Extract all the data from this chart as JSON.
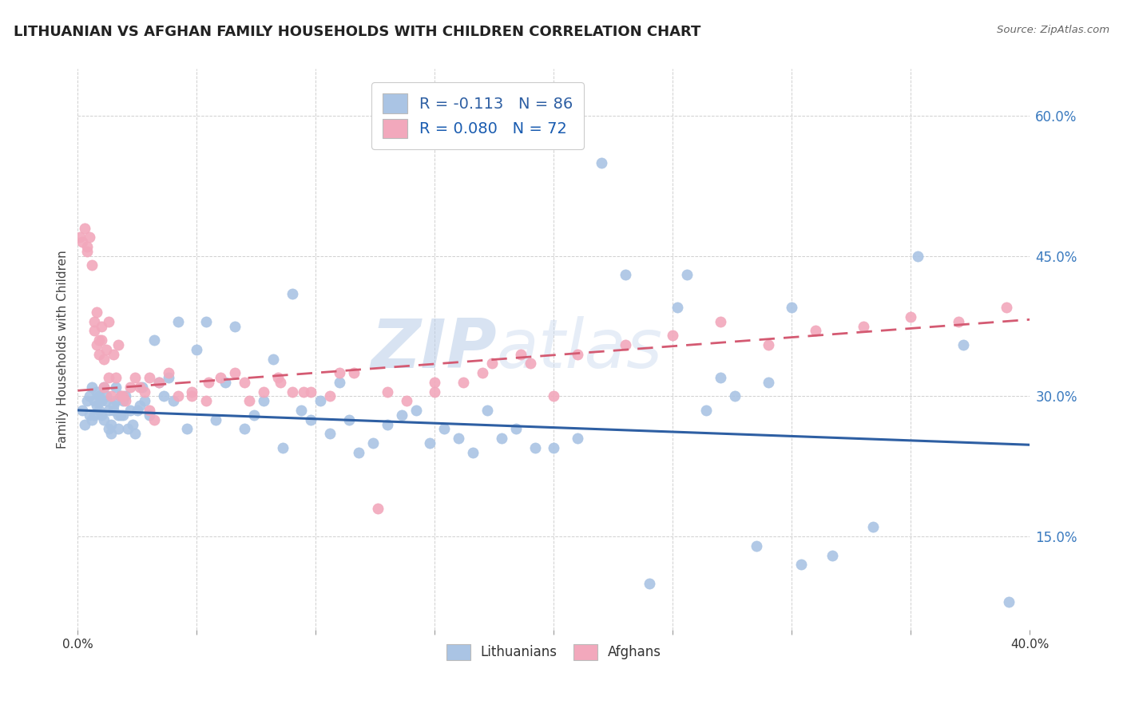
{
  "title": "LITHUANIAN VS AFGHAN FAMILY HOUSEHOLDS WITH CHILDREN CORRELATION CHART",
  "source": "Source: ZipAtlas.com",
  "ylabel": "Family Households with Children",
  "y_ticks": [
    "15.0%",
    "30.0%",
    "45.0%",
    "60.0%"
  ],
  "y_tick_values": [
    0.15,
    0.3,
    0.45,
    0.6
  ],
  "xlim": [
    0.0,
    0.4
  ],
  "ylim": [
    0.05,
    0.65
  ],
  "watermark_zip": "ZIP",
  "watermark_atlas": "atlas",
  "lithuanian_color": "#aac4e4",
  "afghan_color": "#f2a8bc",
  "trendline_lithuanian_color": "#2e5fa3",
  "trendline_afghan_color": "#d45a72",
  "background_color": "#ffffff",
  "grid_color": "#d0d0d0",
  "lithuanian_points": [
    [
      0.002,
      0.285
    ],
    [
      0.003,
      0.27
    ],
    [
      0.004,
      0.295
    ],
    [
      0.005,
      0.3
    ],
    [
      0.005,
      0.28
    ],
    [
      0.006,
      0.275
    ],
    [
      0.006,
      0.31
    ],
    [
      0.007,
      0.295
    ],
    [
      0.007,
      0.28
    ],
    [
      0.008,
      0.305
    ],
    [
      0.008,
      0.29
    ],
    [
      0.009,
      0.3
    ],
    [
      0.009,
      0.285
    ],
    [
      0.01,
      0.295
    ],
    [
      0.01,
      0.28
    ],
    [
      0.011,
      0.31
    ],
    [
      0.011,
      0.275
    ],
    [
      0.012,
      0.295
    ],
    [
      0.012,
      0.3
    ],
    [
      0.013,
      0.265
    ],
    [
      0.013,
      0.285
    ],
    [
      0.014,
      0.27
    ],
    [
      0.014,
      0.26
    ],
    [
      0.015,
      0.285
    ],
    [
      0.015,
      0.29
    ],
    [
      0.016,
      0.31
    ],
    [
      0.016,
      0.295
    ],
    [
      0.017,
      0.28
    ],
    [
      0.017,
      0.265
    ],
    [
      0.018,
      0.28
    ],
    [
      0.018,
      0.3
    ],
    [
      0.019,
      0.28
    ],
    [
      0.019,
      0.295
    ],
    [
      0.02,
      0.3
    ],
    [
      0.021,
      0.265
    ],
    [
      0.022,
      0.285
    ],
    [
      0.023,
      0.27
    ],
    [
      0.024,
      0.26
    ],
    [
      0.025,
      0.285
    ],
    [
      0.026,
      0.29
    ],
    [
      0.027,
      0.31
    ],
    [
      0.028,
      0.295
    ],
    [
      0.03,
      0.28
    ],
    [
      0.032,
      0.36
    ],
    [
      0.034,
      0.315
    ],
    [
      0.036,
      0.3
    ],
    [
      0.038,
      0.32
    ],
    [
      0.04,
      0.295
    ],
    [
      0.042,
      0.38
    ],
    [
      0.046,
      0.265
    ],
    [
      0.05,
      0.35
    ],
    [
      0.054,
      0.38
    ],
    [
      0.058,
      0.275
    ],
    [
      0.062,
      0.315
    ],
    [
      0.066,
      0.375
    ],
    [
      0.07,
      0.265
    ],
    [
      0.074,
      0.28
    ],
    [
      0.078,
      0.295
    ],
    [
      0.082,
      0.34
    ],
    [
      0.086,
      0.245
    ],
    [
      0.09,
      0.41
    ],
    [
      0.094,
      0.285
    ],
    [
      0.098,
      0.275
    ],
    [
      0.102,
      0.295
    ],
    [
      0.106,
      0.26
    ],
    [
      0.11,
      0.315
    ],
    [
      0.114,
      0.275
    ],
    [
      0.118,
      0.24
    ],
    [
      0.124,
      0.25
    ],
    [
      0.13,
      0.27
    ],
    [
      0.136,
      0.28
    ],
    [
      0.142,
      0.285
    ],
    [
      0.148,
      0.25
    ],
    [
      0.154,
      0.265
    ],
    [
      0.16,
      0.255
    ],
    [
      0.166,
      0.24
    ],
    [
      0.172,
      0.285
    ],
    [
      0.178,
      0.255
    ],
    [
      0.184,
      0.265
    ],
    [
      0.192,
      0.245
    ],
    [
      0.2,
      0.245
    ],
    [
      0.21,
      0.255
    ],
    [
      0.22,
      0.55
    ],
    [
      0.23,
      0.43
    ],
    [
      0.24,
      0.1
    ],
    [
      0.252,
      0.395
    ],
    [
      0.264,
      0.285
    ],
    [
      0.276,
      0.3
    ],
    [
      0.29,
      0.315
    ],
    [
      0.304,
      0.12
    ],
    [
      0.256,
      0.43
    ],
    [
      0.27,
      0.32
    ],
    [
      0.285,
      0.14
    ],
    [
      0.3,
      0.395
    ],
    [
      0.317,
      0.13
    ],
    [
      0.334,
      0.16
    ],
    [
      0.353,
      0.45
    ],
    [
      0.372,
      0.355
    ],
    [
      0.391,
      0.08
    ]
  ],
  "afghan_points": [
    [
      0.001,
      0.47
    ],
    [
      0.002,
      0.465
    ],
    [
      0.003,
      0.48
    ],
    [
      0.004,
      0.46
    ],
    [
      0.004,
      0.455
    ],
    [
      0.005,
      0.47
    ],
    [
      0.006,
      0.44
    ],
    [
      0.007,
      0.38
    ],
    [
      0.007,
      0.37
    ],
    [
      0.008,
      0.39
    ],
    [
      0.008,
      0.355
    ],
    [
      0.009,
      0.36
    ],
    [
      0.009,
      0.345
    ],
    [
      0.01,
      0.36
    ],
    [
      0.01,
      0.375
    ],
    [
      0.011,
      0.34
    ],
    [
      0.011,
      0.31
    ],
    [
      0.012,
      0.35
    ],
    [
      0.013,
      0.32
    ],
    [
      0.013,
      0.38
    ],
    [
      0.014,
      0.3
    ],
    [
      0.015,
      0.345
    ],
    [
      0.016,
      0.32
    ],
    [
      0.017,
      0.355
    ],
    [
      0.018,
      0.3
    ],
    [
      0.019,
      0.3
    ],
    [
      0.02,
      0.295
    ],
    [
      0.022,
      0.31
    ],
    [
      0.024,
      0.32
    ],
    [
      0.026,
      0.31
    ],
    [
      0.028,
      0.305
    ],
    [
      0.03,
      0.285
    ],
    [
      0.032,
      0.275
    ],
    [
      0.034,
      0.315
    ],
    [
      0.038,
      0.325
    ],
    [
      0.042,
      0.3
    ],
    [
      0.048,
      0.305
    ],
    [
      0.054,
      0.295
    ],
    [
      0.06,
      0.32
    ],
    [
      0.066,
      0.325
    ],
    [
      0.072,
      0.295
    ],
    [
      0.078,
      0.305
    ],
    [
      0.084,
      0.32
    ],
    [
      0.09,
      0.305
    ],
    [
      0.098,
      0.305
    ],
    [
      0.106,
      0.3
    ],
    [
      0.116,
      0.325
    ],
    [
      0.126,
      0.18
    ],
    [
      0.138,
      0.295
    ],
    [
      0.15,
      0.305
    ],
    [
      0.162,
      0.315
    ],
    [
      0.174,
      0.335
    ],
    [
      0.186,
      0.345
    ],
    [
      0.2,
      0.3
    ],
    [
      0.085,
      0.315
    ],
    [
      0.095,
      0.305
    ],
    [
      0.048,
      0.3
    ],
    [
      0.07,
      0.315
    ],
    [
      0.11,
      0.325
    ],
    [
      0.13,
      0.305
    ],
    [
      0.15,
      0.315
    ],
    [
      0.17,
      0.325
    ],
    [
      0.19,
      0.335
    ],
    [
      0.21,
      0.345
    ],
    [
      0.23,
      0.355
    ],
    [
      0.25,
      0.365
    ],
    [
      0.27,
      0.38
    ],
    [
      0.29,
      0.355
    ],
    [
      0.31,
      0.37
    ],
    [
      0.33,
      0.375
    ],
    [
      0.35,
      0.385
    ],
    [
      0.37,
      0.38
    ],
    [
      0.39,
      0.395
    ],
    [
      0.03,
      0.32
    ],
    [
      0.055,
      0.315
    ]
  ]
}
